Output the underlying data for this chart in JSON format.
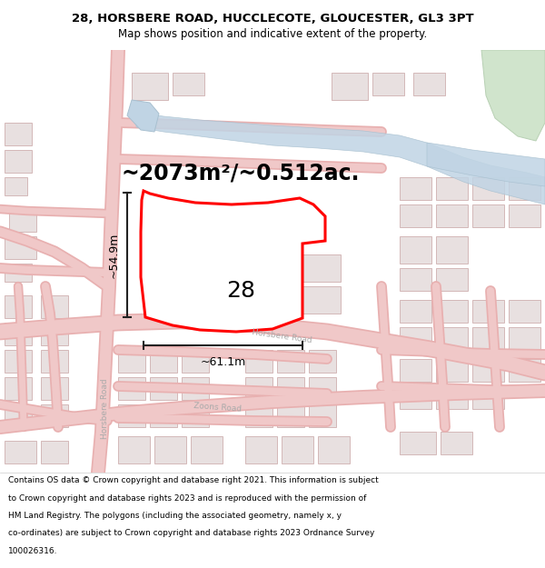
{
  "title_line1": "28, HORSBERE ROAD, HUCCLECOTE, GLOUCESTER, GL3 3PT",
  "title_line2": "Map shows position and indicative extent of the property.",
  "area_text": "~2073m²/~0.512ac.",
  "label_28": "28",
  "dim_height": "~54.9m",
  "dim_width": "~61.1m",
  "footer_lines": [
    "Contains OS data © Crown copyright and database right 2021. This information is subject",
    "to Crown copyright and database rights 2023 and is reproduced with the permission of",
    "HM Land Registry. The polygons (including the associated geometry, namely x, y",
    "co-ordinates) are subject to Crown copyright and database rights 2023 Ordnance Survey",
    "100026316."
  ],
  "bg_color": "#f7f4f4",
  "road_fill": "#f0c8c8",
  "road_edge": "#e8b0b0",
  "building_fill": "#e8e0e0",
  "building_edge": "#d4b8b8",
  "water_fill": "#c0d4e4",
  "water_edge": "#a8c0d0",
  "green_fill": "#d0e4cc",
  "green_edge": "#b8d0b4",
  "plot_fill": "#ffffff",
  "plot_edge": "#cc0000",
  "dim_color": "#222222",
  "road_label_color": "#aaaaaa",
  "title_fontsize": 9.5,
  "subtitle_fontsize": 8.5,
  "area_fontsize": 17,
  "label_fontsize": 18,
  "dim_fontsize": 9,
  "road_label_fontsize": 7,
  "footer_fontsize": 6.5
}
